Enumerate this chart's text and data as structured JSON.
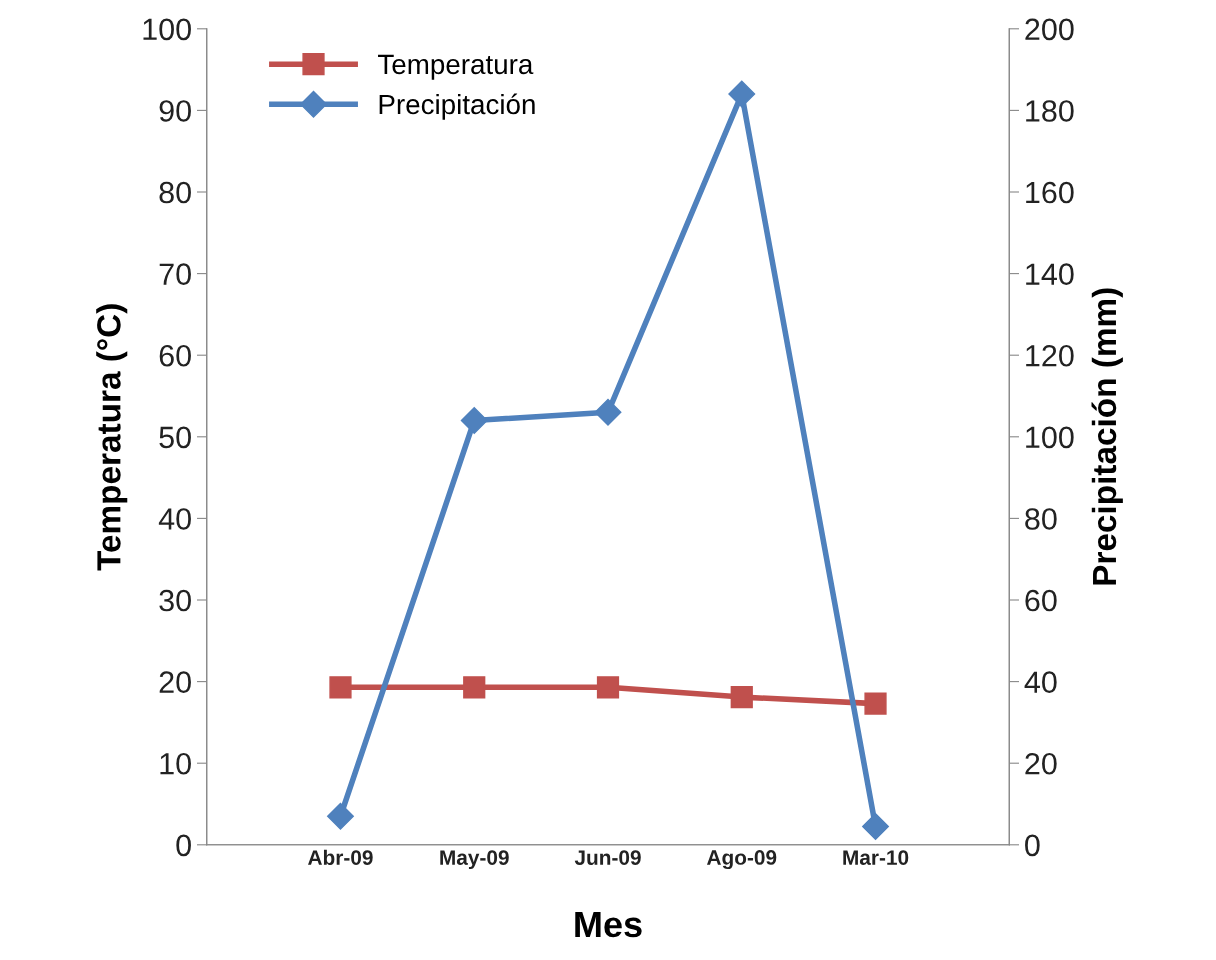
{
  "chart_data": {
    "type": "line",
    "xlabel": "Mes",
    "ylabel": "Temperatura (°C)",
    "y2label": "Precipitación (mm)",
    "categories": [
      "Abr-09",
      "May-09",
      "Jun-09",
      "Ago-09",
      "Mar-10"
    ],
    "series": [
      {
        "name": "Temperatura",
        "color": "#c0504d",
        "values": [
          19.3,
          19.3,
          19.3,
          18.1,
          17.3
        ],
        "marker": "square"
      },
      {
        "name": "Precipitación",
        "color": "#4f81bd",
        "values": [
          7,
          104,
          106,
          184,
          4.5
        ],
        "marker": "diamond",
        "axis": "y2"
      }
    ],
    "ylim": [
      0,
      100
    ],
    "yticks": [
      0,
      10,
      20,
      30,
      40,
      50,
      60,
      70,
      80,
      90,
      100
    ],
    "y2lim": [
      0,
      200
    ],
    "y2ticks": [
      0,
      20,
      40,
      60,
      80,
      100,
      120,
      140,
      160,
      180,
      200
    ],
    "legend": "top left",
    "grid": false
  }
}
